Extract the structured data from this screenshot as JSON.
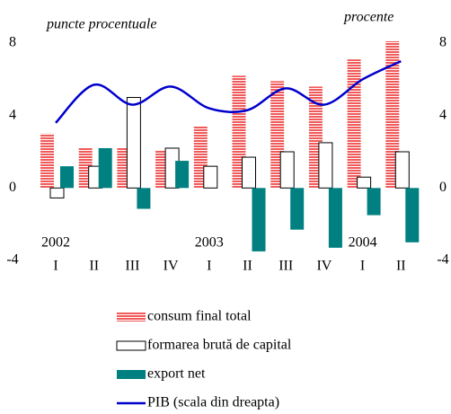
{
  "chart_data": {
    "type": "bar-line",
    "left_axis_label": "puncte procentuale",
    "right_axis_label": "procente",
    "categories": [
      "I",
      "II",
      "III",
      "IV",
      "I",
      "II",
      "III",
      "IV",
      "I",
      "II"
    ],
    "years": [
      {
        "label": "2002",
        "index": 0
      },
      {
        "label": "2003",
        "index": 4
      },
      {
        "label": "2004",
        "index": 8
      }
    ],
    "series": [
      {
        "name": "consum final total",
        "color": "#f05a5a",
        "kind": "bar",
        "values": [
          3.0,
          2.2,
          2.2,
          2.1,
          3.4,
          6.2,
          5.9,
          5.6,
          7.1,
          8.1
        ]
      },
      {
        "name": "formarea brută de capital",
        "color": "#ffffff",
        "kind": "bar",
        "values": [
          -0.55,
          1.2,
          5.0,
          2.2,
          1.2,
          1.7,
          2.0,
          2.5,
          0.6,
          2.0
        ]
      },
      {
        "name": "export net",
        "color": "#008080",
        "kind": "bar",
        "values": [
          1.2,
          2.2,
          -1.15,
          1.5,
          null,
          -3.5,
          -2.3,
          -3.3,
          -1.5,
          -3.0
        ]
      },
      {
        "name": "PIB (scala din dreapta)",
        "color": "#0000cc",
        "kind": "line",
        "axis": "y2",
        "values": [
          3.6,
          5.7,
          4.6,
          5.6,
          4.4,
          4.3,
          5.5,
          4.6,
          6.0,
          7.0
        ]
      }
    ],
    "ylim": [
      -4,
      8
    ],
    "yticks": [
      -4,
      0,
      4,
      8
    ],
    "y2lim": [
      -4,
      8
    ],
    "y2ticks": [
      -4,
      0,
      4,
      8
    ]
  }
}
